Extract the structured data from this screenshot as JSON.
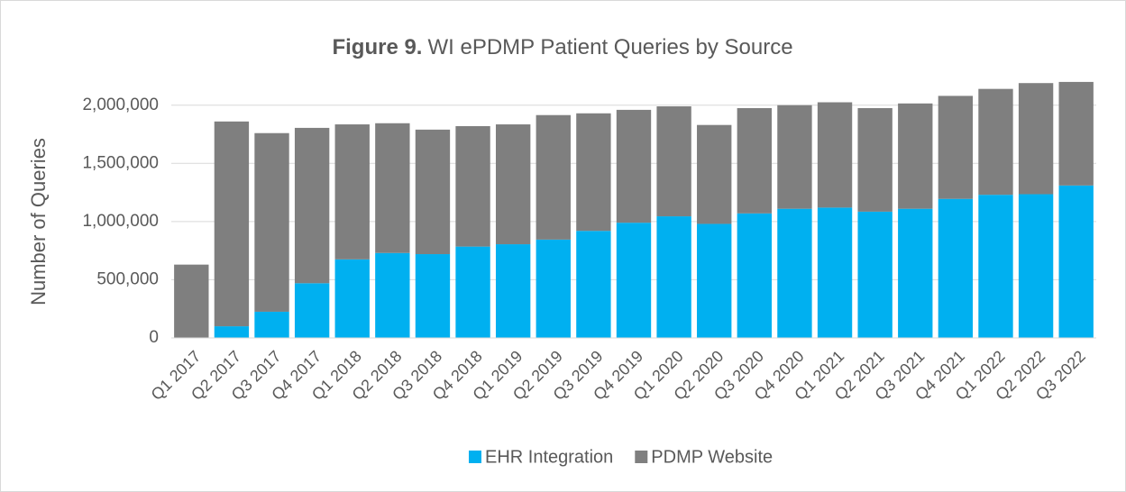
{
  "chart_data": {
    "type": "stacked_bar",
    "title_label": "Figure 9.",
    "title": "WI ePDMP Patient Queries by Source",
    "y_axis_label": "Number of Queries",
    "categories": [
      "Q1 2017",
      "Q2 2017",
      "Q3 2017",
      "Q4 2017",
      "Q1 2018",
      "Q2 2018",
      "Q3 2018",
      "Q4 2018",
      "Q1 2019",
      "Q2 2019",
      "Q3 2019",
      "Q4 2019",
      "Q1 2020",
      "Q2 2020",
      "Q3 2020",
      "Q4 2020",
      "Q1 2021",
      "Q2 2021",
      "Q3 2021",
      "Q4 2021",
      "Q1 2022",
      "Q2 2022",
      "Q3 2022"
    ],
    "series": [
      {
        "name": "EHR Integration",
        "color": "#00b0f0",
        "values": [
          0,
          100000,
          225000,
          470000,
          675000,
          730000,
          720000,
          785000,
          805000,
          845000,
          920000,
          990000,
          1045000,
          980000,
          1070000,
          1110000,
          1120000,
          1085000,
          1110000,
          1195000,
          1230000,
          1235000,
          1310000
        ]
      },
      {
        "name": "PDMP Website",
        "color": "#7f7f7f",
        "values": [
          630000,
          1760000,
          1535000,
          1335000,
          1160000,
          1115000,
          1070000,
          1035000,
          1030000,
          1070000,
          1010000,
          970000,
          945000,
          850000,
          905000,
          890000,
          905000,
          890000,
          905000,
          885000,
          910000,
          955000,
          890000
        ]
      }
    ],
    "ylim": [
      0,
      2300000
    ],
    "yticks": [
      0,
      {
        "value": 500000,
        "label": "500,000"
      },
      {
        "value": 1000000,
        "label": "1,000,000"
      },
      {
        "value": 1500000,
        "label": "1,500,000"
      },
      {
        "value": 2000000,
        "label": "2,000,000"
      }
    ],
    "grid": true
  }
}
